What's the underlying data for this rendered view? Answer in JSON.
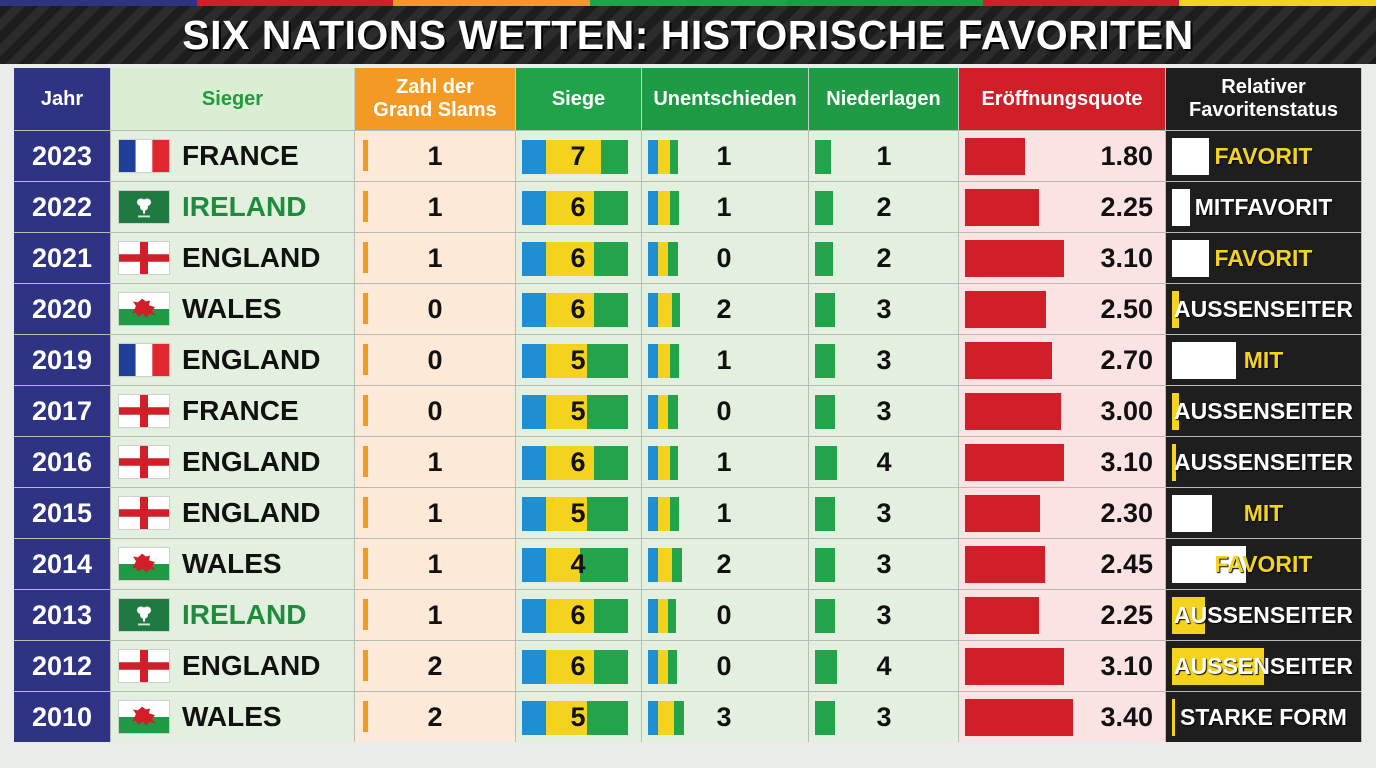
{
  "title": "SIX NATIONS WETTEN: HISTORISCHE FAVORITEN",
  "stripe_colors": [
    "#2f3384",
    "#d01f28",
    "#f39a25",
    "#21a34a",
    "#1f9b45",
    "#d01f28",
    "#f4d31e"
  ],
  "headers": {
    "jahr": "Jahr",
    "sieger": "Sieger",
    "gs_line1": "Zahl der",
    "gs_line2": "Grand Slams",
    "siege": "Siege",
    "unentschieden": "Unentschieden",
    "niederlagen": "Niederlagen",
    "quote": "Eröffnungsquote",
    "status_line1": "Relativer",
    "status_line2": "Favoritenstatus"
  },
  "chart_data": {
    "type": "table",
    "title": "SIX NATIONS WETTEN: HISTORISCHE FAVORITEN",
    "columns": [
      "Jahr",
      "Sieger",
      "Zahl der Grand Slams",
      "Siege",
      "Unentschieden",
      "Niederlagen",
      "Eröffnungsquote",
      "Relativer Favoritenstatus"
    ],
    "colors": {
      "grand_slams": "#f39a25",
      "siege": "#f4d31e",
      "unentschieden": "#f4d31e",
      "niederlagen": "#23a44b",
      "quote": "#d01f28",
      "status": "#ffffff"
    },
    "rows": [
      {
        "year": "2023",
        "winner": "FRANCE",
        "flag": "france",
        "grand_slams": "1",
        "wins": "7",
        "draws": "1",
        "losses": "1",
        "odds": "1.80",
        "status": "FAVORIT",
        "status_color": "yellow",
        "status_level": 0.2,
        "status_bar_color": "white"
      },
      {
        "year": "2022",
        "winner": "IRELAND",
        "flag": "ireland",
        "grand_slams": "1",
        "wins": "6",
        "draws": "1",
        "losses": "2",
        "odds": "2.25",
        "status": "MITFAVORIT",
        "status_color": "white",
        "status_level": 0.1,
        "status_bar_color": "white"
      },
      {
        "year": "2021",
        "winner": "ENGLAND",
        "flag": "england",
        "grand_slams": "1",
        "wins": "6",
        "draws": "0",
        "losses": "2",
        "odds": "3.10",
        "status": "FAVORIT",
        "status_color": "yellow",
        "status_level": 0.2,
        "status_bar_color": "white"
      },
      {
        "year": "2020",
        "winner": "WALES",
        "flag": "wales",
        "grand_slams": "0",
        "wins": "6",
        "draws": "2",
        "losses": "3",
        "odds": "2.50",
        "status": "AUSSENSEITER",
        "status_color": "white",
        "status_level": 0.04,
        "status_bar_color": "yellow"
      },
      {
        "year": "2019",
        "winner": "ENGLAND",
        "flag": "france",
        "grand_slams": "0",
        "wins": "5",
        "draws": "1",
        "losses": "3",
        "odds": "2.70",
        "status": "MIT",
        "status_color": "yellow",
        "status_level": 0.35,
        "status_bar_color": "white"
      },
      {
        "year": "2017",
        "winner": "FRANCE",
        "flag": "england",
        "grand_slams": "0",
        "wins": "5",
        "draws": "0",
        "losses": "3",
        "odds": "3.00",
        "status": "AUSSENSEITER",
        "status_color": "white",
        "status_level": 0.04,
        "status_bar_color": "yellow"
      },
      {
        "year": "2016",
        "winner": "ENGLAND",
        "flag": "england",
        "grand_slams": "1",
        "wins": "6",
        "draws": "1",
        "losses": "4",
        "odds": "3.10",
        "status": "AUSSENSEITER",
        "status_color": "white",
        "status_level": 0.02,
        "status_bar_color": "yellow"
      },
      {
        "year": "2015",
        "winner": "ENGLAND",
        "flag": "england",
        "grand_slams": "1",
        "wins": "5",
        "draws": "1",
        "losses": "3",
        "odds": "2.30",
        "status": "MIT",
        "status_color": "yellow",
        "status_level": 0.22,
        "status_bar_color": "white"
      },
      {
        "year": "2014",
        "winner": "WALES",
        "flag": "wales",
        "grand_slams": "1",
        "wins": "4",
        "draws": "2",
        "losses": "3",
        "odds": "2.45",
        "status": "FAVORIT",
        "status_color": "yellow",
        "status_level": 0.4,
        "status_bar_color": "white"
      },
      {
        "year": "2013",
        "winner": "IRELAND",
        "flag": "ireland",
        "grand_slams": "1",
        "wins": "6",
        "draws": "0",
        "losses": "3",
        "odds": "2.25",
        "status": "AUSSENSEITER",
        "status_color": "white",
        "status_level": 0.18,
        "status_bar_color": "yellow"
      },
      {
        "year": "2012",
        "winner": "ENGLAND",
        "flag": "england",
        "grand_slams": "2",
        "wins": "6",
        "draws": "0",
        "losses": "4",
        "odds": "3.10",
        "status": "AUSSENSEITER",
        "status_color": "white",
        "status_level": 0.5,
        "status_bar_color": "yellow"
      },
      {
        "year": "2010",
        "winner": "WALES",
        "flag": "wales",
        "grand_slams": "2",
        "wins": "5",
        "draws": "3",
        "losses": "3",
        "odds": "3.40",
        "status": "STARKE FORM",
        "status_color": "white",
        "status_level": 0.01,
        "status_bar_color": "yellow"
      }
    ]
  }
}
